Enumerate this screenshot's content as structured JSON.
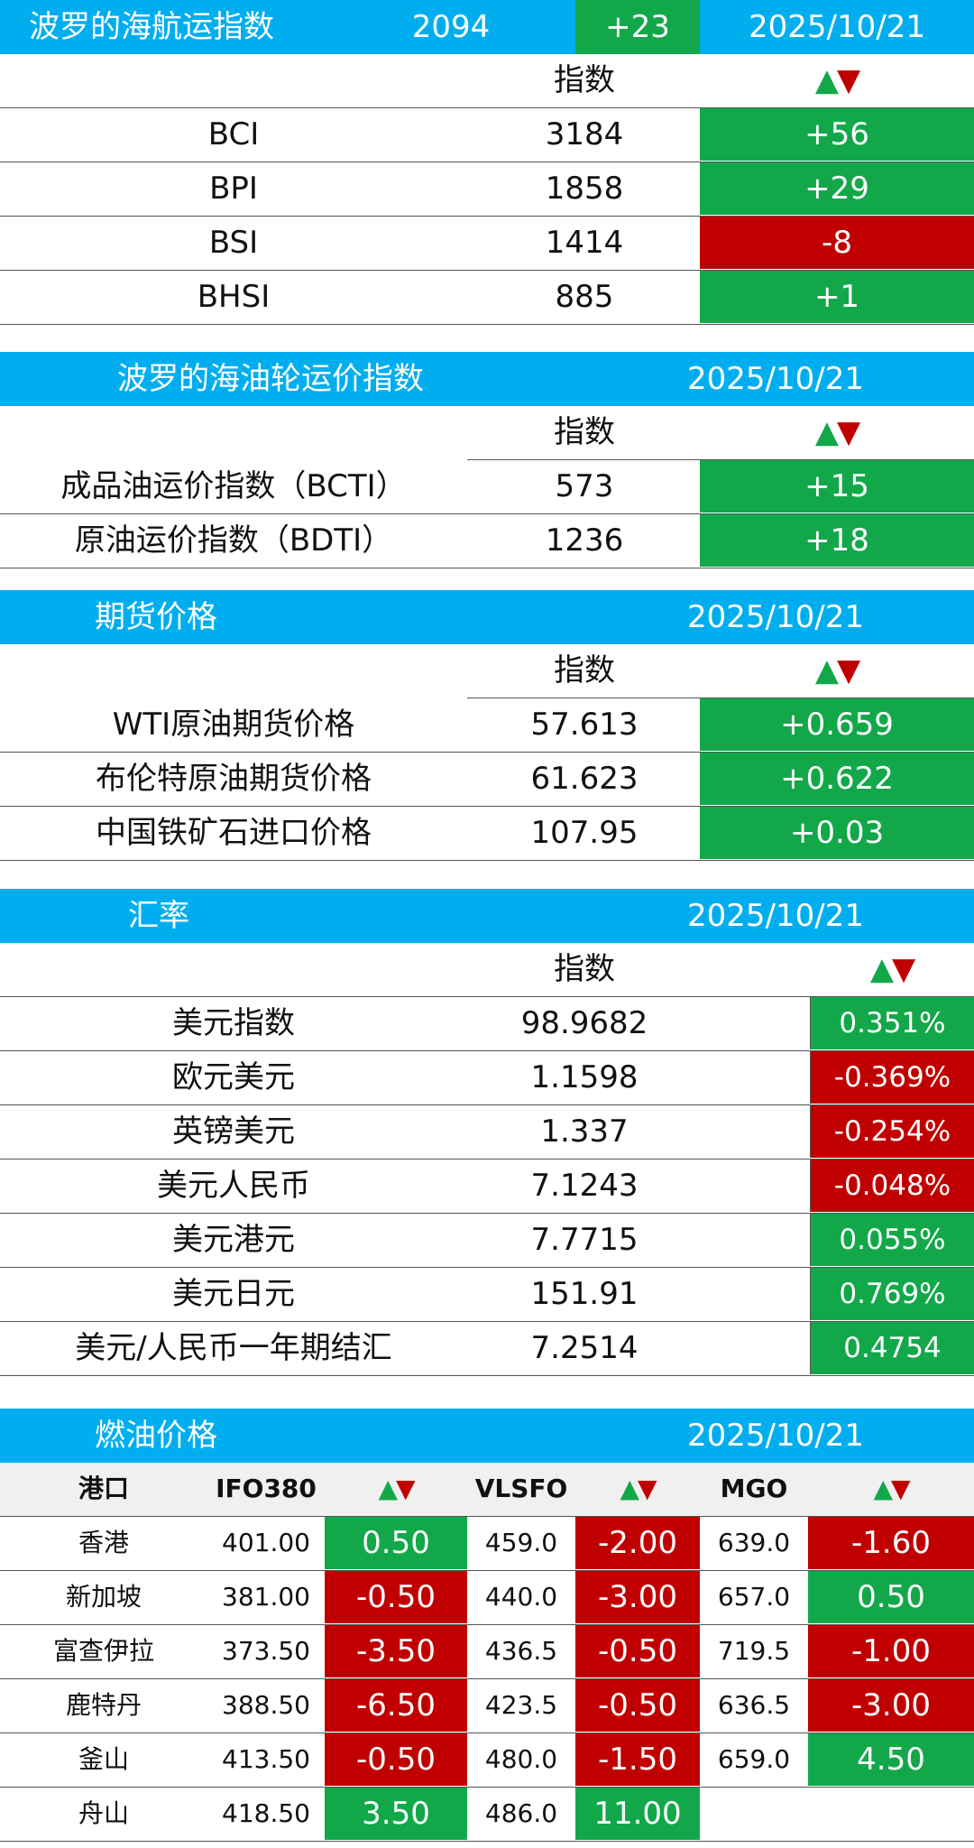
{
  "colors": {
    "header_bg": "#00aeef",
    "up": "#12a84a",
    "down": "#c00000"
  },
  "bdi": {
    "title": "波罗的海航运指数",
    "value": "2094",
    "change": "+23",
    "date": "2025/10/21",
    "col_index": "指数",
    "col_arrow_up": "▲",
    "col_arrow_down": "▼",
    "rows": [
      {
        "name": "BCI",
        "value": "3184",
        "change": "+56",
        "dir": "up"
      },
      {
        "name": "BPI",
        "value": "1858",
        "change": "+29",
        "dir": "up"
      },
      {
        "name": "BSI",
        "value": "1414",
        "change": "-8",
        "dir": "down"
      },
      {
        "name": "BHSI",
        "value": "885",
        "change": "+1",
        "dir": "up"
      }
    ]
  },
  "tanker": {
    "title": "波罗的海油轮运价指数",
    "date": "2025/10/21",
    "col_index": "指数",
    "rows": [
      {
        "name": "成品油运价指数（BCTI）",
        "value": "573",
        "change": "+15",
        "dir": "up"
      },
      {
        "name": "原油运价指数（BDTI）",
        "value": "1236",
        "change": "+18",
        "dir": "up"
      }
    ]
  },
  "futures": {
    "title": "期货价格",
    "date": "2025/10/21",
    "col_index": "指数",
    "rows": [
      {
        "name": "WTI原油期货价格",
        "value": "57.613",
        "change": "+0.659",
        "dir": "up"
      },
      {
        "name": "布伦特原油期货价格",
        "value": "61.623",
        "change": "+0.622",
        "dir": "up"
      },
      {
        "name": "中国铁矿石进口价格",
        "value": "107.95",
        "change": "+0.03",
        "dir": "up"
      }
    ]
  },
  "fx": {
    "title": "汇率",
    "date": "2025/10/21",
    "col_index": "指数",
    "rows": [
      {
        "name": "美元指数",
        "value": "98.9682",
        "change": "0.351%",
        "dir": "up"
      },
      {
        "name": "欧元美元",
        "value": "1.1598",
        "change": "-0.369%",
        "dir": "down"
      },
      {
        "name": "英镑美元",
        "value": "1.337",
        "change": "-0.254%",
        "dir": "down"
      },
      {
        "name": "美元人民币",
        "value": "7.1243",
        "change": "-0.048%",
        "dir": "down"
      },
      {
        "name": "美元港元",
        "value": "7.7715",
        "change": "0.055%",
        "dir": "up"
      },
      {
        "name": "美元日元",
        "value": "151.91",
        "change": "0.769%",
        "dir": "up"
      },
      {
        "name": "美元/人民币一年期结汇",
        "value": "7.2514",
        "change": "0.4754",
        "dir": "up"
      }
    ]
  },
  "fuel": {
    "title": "燃油价格",
    "date": "2025/10/21",
    "headers": {
      "port": "港口",
      "ifo": "IFO380",
      "vlsfo": "VLSFO",
      "mgo": "MGO"
    },
    "rows": [
      {
        "port": "香港",
        "ifo": "401.00",
        "ifo_chg": "0.50",
        "ifo_dir": "up",
        "vlsfo": "459.0",
        "vlsfo_chg": "-2.00",
        "vlsfo_dir": "down",
        "mgo": "639.0",
        "mgo_chg": "-1.60",
        "mgo_dir": "down"
      },
      {
        "port": "新加坡",
        "ifo": "381.00",
        "ifo_chg": "-0.50",
        "ifo_dir": "down",
        "vlsfo": "440.0",
        "vlsfo_chg": "-3.00",
        "vlsfo_dir": "down",
        "mgo": "657.0",
        "mgo_chg": "0.50",
        "mgo_dir": "up"
      },
      {
        "port": "富查伊拉",
        "ifo": "373.50",
        "ifo_chg": "-3.50",
        "ifo_dir": "down",
        "vlsfo": "436.5",
        "vlsfo_chg": "-0.50",
        "vlsfo_dir": "down",
        "mgo": "719.5",
        "mgo_chg": "-1.00",
        "mgo_dir": "down"
      },
      {
        "port": "鹿特丹",
        "ifo": "388.50",
        "ifo_chg": "-6.50",
        "ifo_dir": "down",
        "vlsfo": "423.5",
        "vlsfo_chg": "-0.50",
        "vlsfo_dir": "down",
        "mgo": "636.5",
        "mgo_chg": "-3.00",
        "mgo_dir": "down"
      },
      {
        "port": "釜山",
        "ifo": "413.50",
        "ifo_chg": "-0.50",
        "ifo_dir": "down",
        "vlsfo": "480.0",
        "vlsfo_chg": "-1.50",
        "vlsfo_dir": "down",
        "mgo": "659.0",
        "mgo_chg": "4.50",
        "mgo_dir": "up"
      },
      {
        "port": "舟山",
        "ifo": "418.50",
        "ifo_chg": "3.50",
        "ifo_dir": "up",
        "vlsfo": "486.0",
        "vlsfo_chg": "11.00",
        "vlsfo_dir": "up",
        "mgo": "",
        "mgo_chg": "",
        "mgo_dir": ""
      }
    ]
  }
}
